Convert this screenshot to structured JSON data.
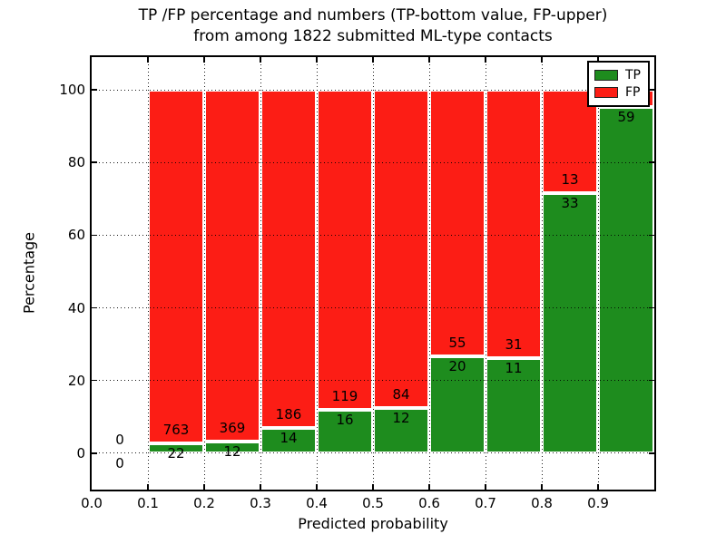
{
  "chart_data": {
    "type": "bar",
    "subtype": "percentage-stacked-histogram",
    "title_line1": "TP /FP percentage and numbers (TP-bottom value, FP-upper)",
    "title_line2": "from among 1822 submitted ML-type contacts",
    "xlabel": "Predicted probability",
    "ylabel": "Percentage",
    "xlim": [
      0.0,
      1.0
    ],
    "ylim": [
      -10,
      109
    ],
    "x_tick_labels": [
      "0.0",
      "0.1",
      "0.2",
      "0.3",
      "0.4",
      "0.5",
      "0.6",
      "0.7",
      "0.8",
      "0.9"
    ],
    "y_tick_values": [
      0,
      20,
      40,
      60,
      80,
      100
    ],
    "y_tick_labels": [
      "0",
      "20",
      "40",
      "60",
      "80",
      "100"
    ],
    "grid": "dotted",
    "grid_color": "#000000",
    "bin_starts": [
      0.0,
      0.1,
      0.2,
      0.3,
      0.4,
      0.5,
      0.6,
      0.7,
      0.8,
      0.9
    ],
    "bar_width": 0.1,
    "legend": {
      "position": "upper-right",
      "items": [
        {
          "label": "TP",
          "color": "#1e8c1e"
        },
        {
          "label": "FP",
          "color": "#fc1d15"
        }
      ]
    },
    "series": [
      {
        "name": "TP",
        "color": "#1e8c1e",
        "count_labels": [
          "0",
          "22",
          "12",
          "14",
          "16",
          "12",
          "20",
          "11",
          "33",
          "59"
        ],
        "pct": [
          0,
          2.8,
          3.1,
          7.0,
          11.9,
          12.5,
          26.7,
          26.2,
          71.7,
          95.2
        ]
      },
      {
        "name": "FP",
        "color": "#fc1d15",
        "count_labels": [
          "0",
          "763",
          "369",
          "186",
          "119",
          "84",
          "55",
          "31",
          "13",
          ""
        ],
        "pct": [
          0,
          97.2,
          96.9,
          93.0,
          88.1,
          87.5,
          73.3,
          73.8,
          28.3,
          4.8
        ]
      }
    ]
  }
}
